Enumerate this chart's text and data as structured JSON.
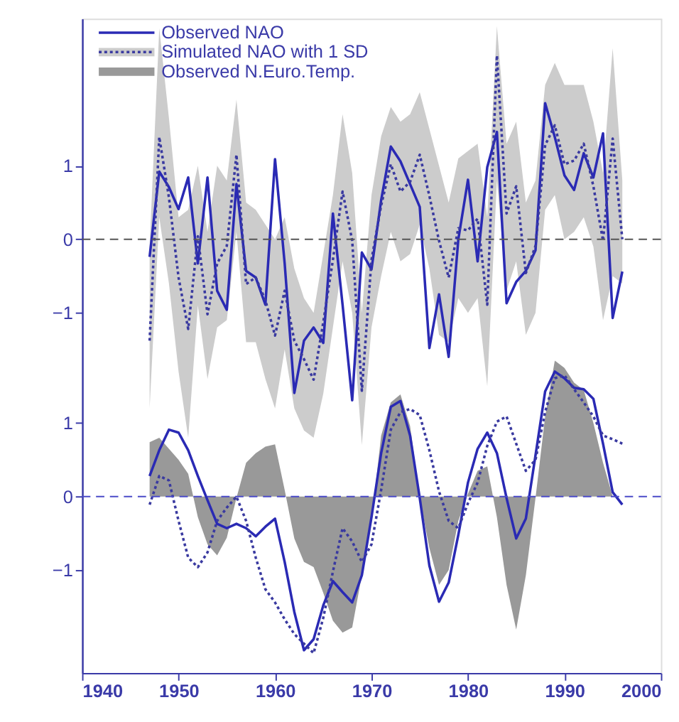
{
  "chart_data": {
    "type": "line",
    "x": [
      1947,
      1948,
      1949,
      1950,
      1951,
      1952,
      1953,
      1954,
      1955,
      1956,
      1957,
      1958,
      1959,
      1960,
      1961,
      1962,
      1963,
      1964,
      1965,
      1966,
      1967,
      1968,
      1969,
      1970,
      1971,
      1972,
      1973,
      1974,
      1975,
      1976,
      1977,
      1978,
      1979,
      1980,
      1981,
      1982,
      1983,
      1984,
      1985,
      1986,
      1987,
      1988,
      1989,
      1990,
      1991,
      1992,
      1993,
      1994,
      1995,
      1996
    ],
    "xlim": [
      1940,
      2000
    ],
    "xticks": [
      1940,
      1950,
      1960,
      1970,
      1980,
      1990,
      2000
    ],
    "ylim": [
      -2.4,
      6.5
    ],
    "yticks": [
      {
        "value": -1,
        "label": "−1"
      },
      0,
      1
    ],
    "y2lim": [
      -5.9,
      3.0
    ],
    "y2ticks": [
      {
        "value": -1,
        "label": "−1"
      },
      0,
      1
    ],
    "legend": "top left",
    "grid": false,
    "series": [
      {
        "name": "Observed NAO",
        "axis": "y2",
        "color": "#2a2ab4",
        "line_style": "solid",
        "values": [
          -0.24,
          0.92,
          0.71,
          0.41,
          0.84,
          -0.33,
          0.84,
          -0.7,
          -0.96,
          0.75,
          -0.43,
          -0.52,
          -0.89,
          1.09,
          -0.33,
          -2.09,
          -1.38,
          -1.2,
          -1.41,
          0.35,
          -0.89,
          -2.19,
          -0.18,
          -0.41,
          0.53,
          1.26,
          1.06,
          0.75,
          0.44,
          -1.48,
          -0.75,
          -1.6,
          0.0,
          0.81,
          -0.3,
          0.98,
          1.46,
          -0.87,
          -0.58,
          -0.43,
          -0.15,
          1.85,
          1.39,
          0.87,
          0.67,
          1.17,
          0.84,
          1.44,
          -1.07,
          -0.44
        ]
      },
      {
        "name": "Simulated NAO with 1 SD",
        "axis": "y2",
        "color": "#3a3aa0",
        "line_style": "dotted",
        "values": [
          -1.38,
          1.39,
          0.57,
          -0.52,
          -1.22,
          0.04,
          -1.02,
          -0.33,
          -0.09,
          1.15,
          -0.61,
          -0.52,
          -0.83,
          -1.31,
          -0.7,
          -1.38,
          -1.63,
          -1.91,
          -1.13,
          -0.28,
          0.65,
          -0.02,
          -2.06,
          -0.28,
          0.46,
          1.02,
          0.65,
          0.78,
          1.15,
          0.59,
          -0.02,
          -0.52,
          0.15,
          0.12,
          0.28,
          -0.89,
          2.5,
          0.35,
          0.72,
          -0.46,
          -0.09,
          1.28,
          1.55,
          1.02,
          1.07,
          1.3,
          0.72,
          -0.02,
          1.37,
          0.0
        ],
        "upper": [
          -0.1,
          2.87,
          1.65,
          0.3,
          0.4,
          1.0,
          0.1,
          1.0,
          0.8,
          1.9,
          0.5,
          0.4,
          0.2,
          0.0,
          0.3,
          -0.4,
          -0.8,
          -1.0,
          -0.2,
          0.6,
          1.7,
          0.9,
          -1.0,
          0.6,
          1.4,
          1.8,
          1.6,
          1.7,
          2.0,
          1.5,
          1.0,
          0.5,
          1.1,
          1.2,
          1.3,
          0.3,
          2.9,
          1.3,
          1.6,
          0.5,
          0.8,
          2.1,
          2.4,
          2.1,
          2.1,
          2.1,
          1.6,
          0.9,
          2.6,
          0.8
        ],
        "lower": [
          -2.3,
          0.3,
          -0.6,
          -1.8,
          -2.7,
          -0.9,
          -1.9,
          -1.2,
          -1.1,
          0.1,
          -1.4,
          -1.4,
          -1.9,
          -2.3,
          -1.5,
          -2.3,
          -2.6,
          -2.7,
          -2.1,
          -1.2,
          -0.3,
          -1.0,
          -2.8,
          -1.2,
          -0.5,
          0.1,
          -0.3,
          -0.2,
          0.2,
          -0.4,
          -1.3,
          -1.4,
          -0.8,
          -1.0,
          -0.8,
          -2.0,
          0.8,
          -0.7,
          -0.3,
          -1.3,
          -1.0,
          0.4,
          0.6,
          0.0,
          0.1,
          0.3,
          -0.1,
          -1.1,
          -0.5,
          -0.6
        ]
      },
      {
        "name": "Observed N.Euro.Temp.",
        "type": "area",
        "axis": "y",
        "color": "#999999",
        "values": [
          0.74,
          0.8,
          0.65,
          0.5,
          0.31,
          -0.28,
          -0.65,
          -0.8,
          -0.56,
          -0.02,
          0.46,
          0.59,
          0.68,
          0.71,
          0.09,
          -0.57,
          -0.89,
          -0.96,
          -1.31,
          -1.69,
          -1.85,
          -1.78,
          -1.07,
          -0.33,
          0.83,
          1.28,
          1.39,
          0.96,
          -0.02,
          -0.7,
          -1.2,
          -1.0,
          -0.33,
          0.04,
          0.35,
          0.41,
          -0.28,
          -1.2,
          -1.81,
          -1.07,
          -0.02,
          1.09,
          1.85,
          1.75,
          1.55,
          1.45,
          1.0,
          0.46,
          0.0,
          0.0
        ]
      },
      {
        "axis": "y",
        "color": "#2a2ab4",
        "line_style": "solid",
        "values": [
          0.28,
          0.63,
          0.91,
          0.87,
          0.63,
          0.28,
          -0.05,
          -0.37,
          -0.43,
          -0.37,
          -0.43,
          -0.54,
          -0.41,
          -0.3,
          -0.89,
          -1.57,
          -2.09,
          -1.94,
          -1.48,
          -1.15,
          -1.3,
          -1.44,
          -1.07,
          -0.28,
          0.59,
          1.22,
          1.3,
          0.83,
          -0.02,
          -0.94,
          -1.43,
          -1.17,
          -0.52,
          0.19,
          0.65,
          0.87,
          0.59,
          -0.02,
          -0.57,
          -0.3,
          0.56,
          1.43,
          1.7,
          1.61,
          1.48,
          1.46,
          1.33,
          0.72,
          0.06,
          -0.11
        ]
      },
      {
        "axis": "y",
        "color": "#3a3aa0",
        "line_style": "dotted",
        "values": [
          -0.11,
          0.28,
          0.22,
          -0.33,
          -0.83,
          -0.96,
          -0.76,
          -0.33,
          -0.15,
          0.0,
          -0.33,
          -0.83,
          -1.26,
          -1.44,
          -1.67,
          -1.87,
          -2.0,
          -2.13,
          -1.65,
          -1.02,
          -0.43,
          -0.61,
          -0.89,
          -0.65,
          0.09,
          0.91,
          1.15,
          1.19,
          1.11,
          0.63,
          0.07,
          -0.33,
          -0.43,
          -0.09,
          0.19,
          0.69,
          1.02,
          1.09,
          0.72,
          0.35,
          0.5,
          1.15,
          1.61,
          1.65,
          1.46,
          1.28,
          1.09,
          0.83,
          0.78,
          0.72
        ]
      }
    ],
    "ref_lines": [
      {
        "axis": "y2",
        "value": 0,
        "color": "#555555",
        "line_style": "dashed"
      },
      {
        "axis": "y",
        "value": 0,
        "color": "#4a4ac8",
        "line_style": "dashed"
      }
    ]
  }
}
